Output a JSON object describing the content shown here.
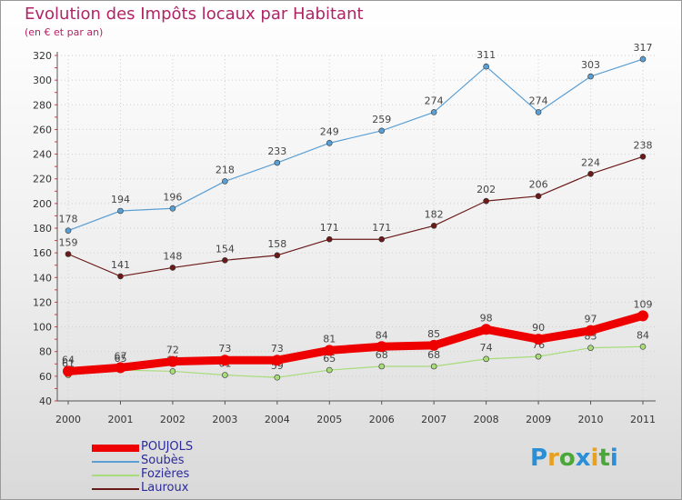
{
  "title": "Evolution des Impôts locaux par Habitant",
  "subtitle": "(en € et par an)",
  "logo": {
    "letters": [
      "P",
      "r",
      "o",
      "x",
      "i",
      "t",
      "i"
    ],
    "colors": [
      "#2a8fd6",
      "#e8a020",
      "#4aa838",
      "#2a8fd6",
      "#e8a020",
      "#4aa838",
      "#2a8fd6"
    ]
  },
  "chart_data": {
    "type": "line",
    "categories": [
      "2000",
      "2001",
      "2002",
      "2003",
      "2004",
      "2005",
      "2006",
      "2007",
      "2008",
      "2009",
      "2010",
      "2011"
    ],
    "ylim": [
      40,
      320
    ],
    "yticks": [
      40,
      60,
      80,
      100,
      120,
      140,
      160,
      180,
      200,
      220,
      240,
      260,
      280,
      300,
      320
    ],
    "grid": true,
    "legend_position": "bottom-left",
    "series": [
      {
        "name": "Soubès",
        "color": "#5a9fd4",
        "values": [
          178,
          194,
          196,
          218,
          233,
          249,
          259,
          274,
          311,
          274,
          303,
          317
        ],
        "labels": [
          "178",
          "194",
          "196",
          "218",
          "233",
          "249",
          "259",
          "274",
          "311",
          "274",
          "303",
          "317"
        ]
      },
      {
        "name": "Lauroux",
        "color": "#6b1a1a",
        "values": [
          159,
          141,
          148,
          154,
          158,
          171,
          171,
          182,
          202,
          206,
          224,
          238
        ],
        "labels": [
          "159",
          "141",
          "148",
          "154",
          "158",
          "171",
          "171",
          "182",
          "202",
          "206",
          "224",
          "238"
        ]
      },
      {
        "name": "Fozières",
        "color": "#a8dc7a",
        "values": [
          61,
          65,
          64,
          61,
          59,
          65,
          68,
          68,
          74,
          76,
          83,
          84
        ],
        "labels": [
          "61",
          "65",
          "64",
          "61",
          "59",
          "65",
          "68",
          "68",
          "74",
          "76",
          "83",
          "84"
        ]
      },
      {
        "name": "POUJOLS",
        "color": "#ee0000",
        "values": [
          64,
          67,
          72,
          73,
          73,
          81,
          84,
          85,
          98,
          90,
          97,
          109
        ],
        "labels": [
          "64",
          "67",
          "72",
          "73",
          "73",
          "81",
          "84",
          "85",
          "98",
          "90",
          "97",
          "109"
        ]
      }
    ]
  }
}
